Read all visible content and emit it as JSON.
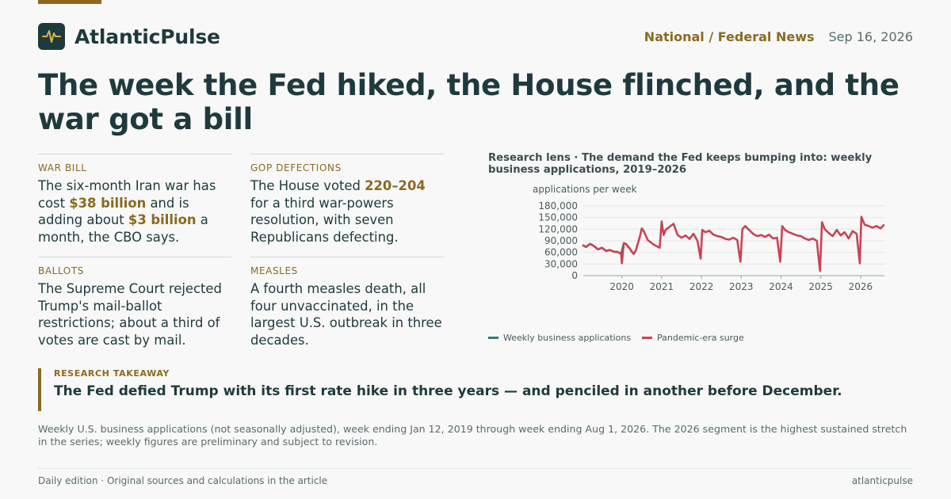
{
  "brand": {
    "name": "AtlanticPulse",
    "logo_icon": "pulse-icon",
    "accent": "#8a6a22",
    "dark": "#1f3a3d"
  },
  "header": {
    "section": "National / Federal News",
    "date": "Sep 16, 2026"
  },
  "headline": "The week the Fed hiked, the House flinched, and the war got a bill",
  "briefs": [
    {
      "kicker": "WAR BILL",
      "parts": [
        "The six-month Iran war has cost ",
        "$38 billion",
        " and is adding about ",
        "$3 billion",
        " a month, the CBO says."
      ]
    },
    {
      "kicker": "GOP DEFECTIONS",
      "parts": [
        "The House voted ",
        "220–204",
        " for a third war-powers resolution, with seven Republicans defecting."
      ]
    },
    {
      "kicker": "BALLOTS",
      "text": "The Supreme Court rejected Trump's mail-ballot restrictions; about a third of votes are cast by mail."
    },
    {
      "kicker": "MEASLES",
      "text": "A fourth measles death, all four unvaccinated, in the largest U.S. outbreak in three decades."
    }
  ],
  "chart_data": {
    "type": "line",
    "title": "Research lens · The demand the Fed keeps bumping into: weekly business applications, 2019–2026",
    "ylabel": "applications per week",
    "xlabel": "",
    "ylim": [
      0,
      180000
    ],
    "yticks": [
      0,
      30000,
      60000,
      90000,
      120000,
      150000,
      180000
    ],
    "ytick_labels": [
      "0",
      "30,000",
      "60,000",
      "90,000",
      "120,000",
      "150,000",
      "180,000"
    ],
    "xlim": [
      2019.03,
      2026.6
    ],
    "xticks": [
      2020,
      2021,
      2022,
      2023,
      2024,
      2025,
      2026
    ],
    "grid": "horizontal",
    "legend": "bottom-left",
    "series": [
      {
        "name": "Weekly business applications",
        "color": "#2e7d78",
        "points": [
          [
            2019.03,
            78000
          ],
          [
            2019.1,
            74000
          ],
          [
            2019.2,
            82000
          ],
          [
            2019.3,
            76000
          ],
          [
            2019.4,
            68000
          ],
          [
            2019.5,
            72000
          ],
          [
            2019.6,
            64000
          ],
          [
            2019.7,
            66000
          ],
          [
            2019.8,
            62000
          ],
          [
            2019.9,
            61000
          ],
          [
            2019.98,
            56000
          ],
          [
            2020.05,
            84000
          ],
          [
            2020.1,
            82000
          ],
          [
            2020.2,
            70000
          ],
          [
            2020.25,
            62000
          ],
          [
            2020.3,
            56000
          ]
        ]
      },
      {
        "name": "Pandemic-era surge",
        "color": "#c94455",
        "points": [
          [
            2019.03,
            78000
          ],
          [
            2019.1,
            74000
          ],
          [
            2019.2,
            82000
          ],
          [
            2019.3,
            76000
          ],
          [
            2019.4,
            68000
          ],
          [
            2019.5,
            72000
          ],
          [
            2019.6,
            64000
          ],
          [
            2019.7,
            66000
          ],
          [
            2019.8,
            62000
          ],
          [
            2019.9,
            61000
          ],
          [
            2019.98,
            56000
          ],
          [
            2020.0,
            32000
          ],
          [
            2020.05,
            84000
          ],
          [
            2020.1,
            82000
          ],
          [
            2020.2,
            70000
          ],
          [
            2020.25,
            62000
          ],
          [
            2020.3,
            56000
          ],
          [
            2020.35,
            65000
          ],
          [
            2020.45,
            100000
          ],
          [
            2020.5,
            122000
          ],
          [
            2020.55,
            115000
          ],
          [
            2020.65,
            92000
          ],
          [
            2020.8,
            80000
          ],
          [
            2020.95,
            72000
          ],
          [
            2021.0,
            140000
          ],
          [
            2021.05,
            105000
          ],
          [
            2021.1,
            118000
          ],
          [
            2021.2,
            126000
          ],
          [
            2021.3,
            134000
          ],
          [
            2021.4,
            105000
          ],
          [
            2021.5,
            98000
          ],
          [
            2021.6,
            104000
          ],
          [
            2021.7,
            95000
          ],
          [
            2021.8,
            108000
          ],
          [
            2021.9,
            90000
          ],
          [
            2021.98,
            44000
          ],
          [
            2022.02,
            118000
          ],
          [
            2022.1,
            112000
          ],
          [
            2022.2,
            116000
          ],
          [
            2022.3,
            106000
          ],
          [
            2022.4,
            102000
          ],
          [
            2022.5,
            100000
          ],
          [
            2022.6,
            95000
          ],
          [
            2022.7,
            93000
          ],
          [
            2022.8,
            98000
          ],
          [
            2022.9,
            92000
          ],
          [
            2022.98,
            36000
          ],
          [
            2023.03,
            120000
          ],
          [
            2023.1,
            128000
          ],
          [
            2023.2,
            118000
          ],
          [
            2023.3,
            108000
          ],
          [
            2023.4,
            102000
          ],
          [
            2023.5,
            105000
          ],
          [
            2023.6,
            100000
          ],
          [
            2023.7,
            106000
          ],
          [
            2023.8,
            96000
          ],
          [
            2023.9,
            98000
          ],
          [
            2023.98,
            36000
          ],
          [
            2024.03,
            128000
          ],
          [
            2024.1,
            118000
          ],
          [
            2024.2,
            112000
          ],
          [
            2024.3,
            108000
          ],
          [
            2024.4,
            104000
          ],
          [
            2024.5,
            102000
          ],
          [
            2024.6,
            96000
          ],
          [
            2024.7,
            92000
          ],
          [
            2024.8,
            96000
          ],
          [
            2024.9,
            90000
          ],
          [
            2024.98,
            12000
          ],
          [
            2025.03,
            138000
          ],
          [
            2025.1,
            120000
          ],
          [
            2025.2,
            110000
          ],
          [
            2025.3,
            102000
          ],
          [
            2025.4,
            118000
          ],
          [
            2025.5,
            104000
          ],
          [
            2025.6,
            112000
          ],
          [
            2025.7,
            96000
          ],
          [
            2025.8,
            115000
          ],
          [
            2025.9,
            108000
          ],
          [
            2025.98,
            32000
          ],
          [
            2026.02,
            152000
          ],
          [
            2026.1,
            132000
          ],
          [
            2026.2,
            128000
          ],
          [
            2026.3,
            124000
          ],
          [
            2026.4,
            128000
          ],
          [
            2026.5,
            122000
          ],
          [
            2026.58,
            130000
          ]
        ]
      }
    ]
  },
  "takeaway": {
    "kicker": "RESEARCH TAKEAWAY",
    "text": "The Fed defied Trump with its first rate hike in three years — and penciled in another before December."
  },
  "footnote": "Weekly U.S. business applications (not seasonally adjusted), week ending Jan 12, 2019 through week ending Aug 1, 2026. The 2026 segment is the highest sustained stretch in the series; weekly figures are preliminary and subject to revision.",
  "footer": {
    "left": "Daily edition · Original sources and calculations in the article",
    "right": "atlanticpulse"
  }
}
